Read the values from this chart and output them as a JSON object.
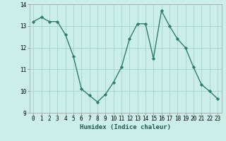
{
  "x": [
    0,
    1,
    2,
    3,
    4,
    5,
    6,
    7,
    8,
    9,
    10,
    11,
    12,
    13,
    14,
    15,
    16,
    17,
    18,
    19,
    20,
    21,
    22,
    23
  ],
  "y": [
    13.2,
    13.4,
    13.2,
    13.2,
    12.6,
    11.6,
    10.1,
    9.8,
    9.5,
    9.85,
    10.4,
    11.1,
    12.4,
    13.1,
    13.1,
    11.5,
    13.7,
    13.0,
    12.4,
    12.0,
    11.1,
    10.3,
    10.0,
    9.65
  ],
  "line_color": "#2e7d6e",
  "marker": "D",
  "marker_size": 2.2,
  "line_width": 1.0,
  "bg_color": "#cceee8",
  "grid_color": "#aad8d0",
  "xlabel": "Humidex (Indice chaleur)",
  "xlim": [
    -0.5,
    23.5
  ],
  "ylim": [
    9,
    14
  ],
  "yticks": [
    9,
    10,
    11,
    12,
    13,
    14
  ],
  "xticks": [
    0,
    1,
    2,
    3,
    4,
    5,
    6,
    7,
    8,
    9,
    10,
    11,
    12,
    13,
    14,
    15,
    16,
    17,
    18,
    19,
    20,
    21,
    22,
    23
  ],
  "xtick_labels": [
    "0",
    "1",
    "2",
    "3",
    "4",
    "5",
    "6",
    "7",
    "8",
    "9",
    "10",
    "11",
    "12",
    "13",
    "14",
    "15",
    "16",
    "17",
    "18",
    "19",
    "20",
    "21",
    "22",
    "23"
  ],
  "xlabel_fontsize": 6.5,
  "tick_fontsize": 5.5
}
